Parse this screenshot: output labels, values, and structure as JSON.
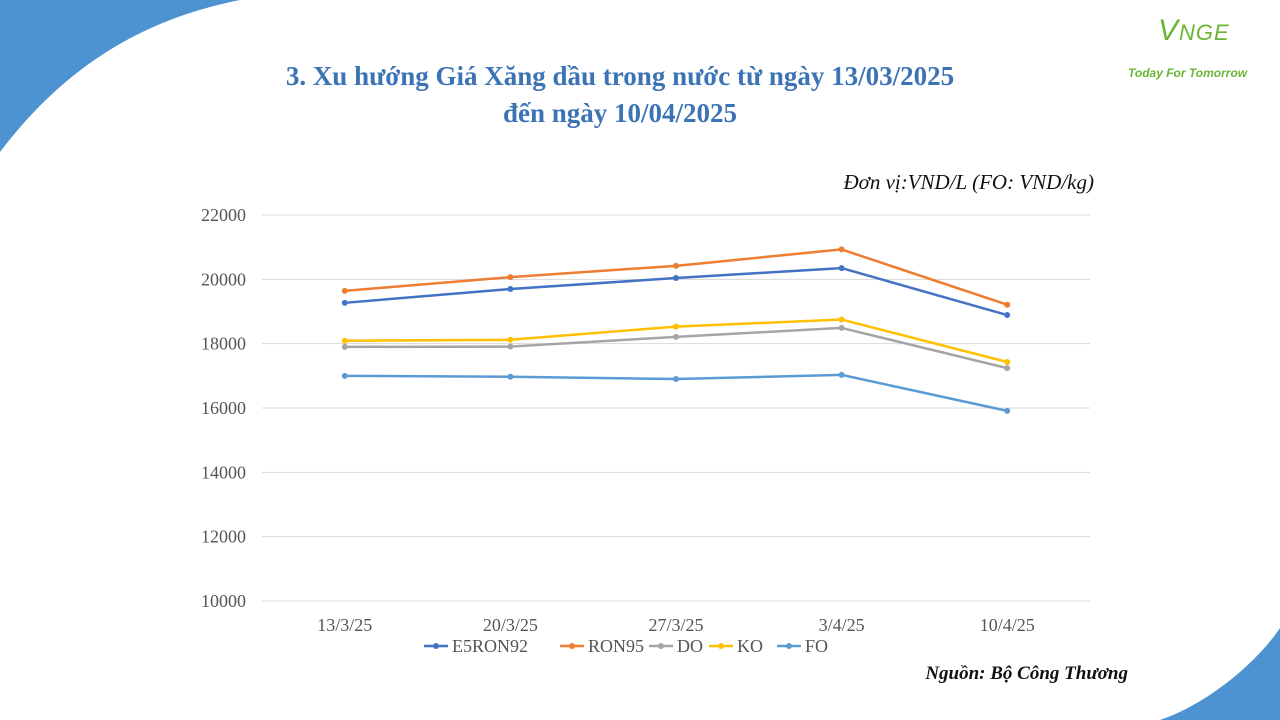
{
  "slide": {
    "title_line1": "3. Xu hướng Giá Xăng dầu trong nước từ ngày 13/03/2025",
    "title_line2": "đến ngày 10/04/2025",
    "unit": "Đơn vị:VND/L (FO: VND/kg)",
    "source": "Nguồn: Bộ Công Thương"
  },
  "logo": {
    "mark_v": "V",
    "mark_rest": "NGE",
    "tagline": "Today For Tomorrow",
    "color": "#6bb536"
  },
  "colors": {
    "title": "#3b73b4",
    "decoration": "#4e93d1"
  },
  "chart_data": {
    "type": "line",
    "title": "",
    "xlabel": "",
    "ylabel": "",
    "categories": [
      "13/3/25",
      "20/3/25",
      "27/3/25",
      "3/4/25",
      "10/4/25"
    ],
    "ylim": [
      10000,
      22000
    ],
    "yticks": [
      10000,
      12000,
      14000,
      16000,
      18000,
      20000,
      22000
    ],
    "grid": true,
    "legend_position": "bottom",
    "series": [
      {
        "name": "E5RON92",
        "color": "#4472c4",
        "values": [
          19270,
          19700,
          20040,
          20350,
          18890
        ]
      },
      {
        "name": "RON95",
        "color": "#ed7d31",
        "values": [
          19640,
          20070,
          20420,
          20930,
          19210
        ]
      },
      {
        "name": "DO",
        "color": "#a5a5a5",
        "values": [
          17900,
          17910,
          18210,
          18490,
          17240
        ]
      },
      {
        "name": "KO",
        "color": "#ffc000",
        "values": [
          18090,
          18120,
          18530,
          18750,
          17430
        ]
      },
      {
        "name": "FO",
        "color": "#5b9bd5",
        "values": [
          17000,
          16970,
          16900,
          17030,
          15910
        ]
      }
    ]
  }
}
